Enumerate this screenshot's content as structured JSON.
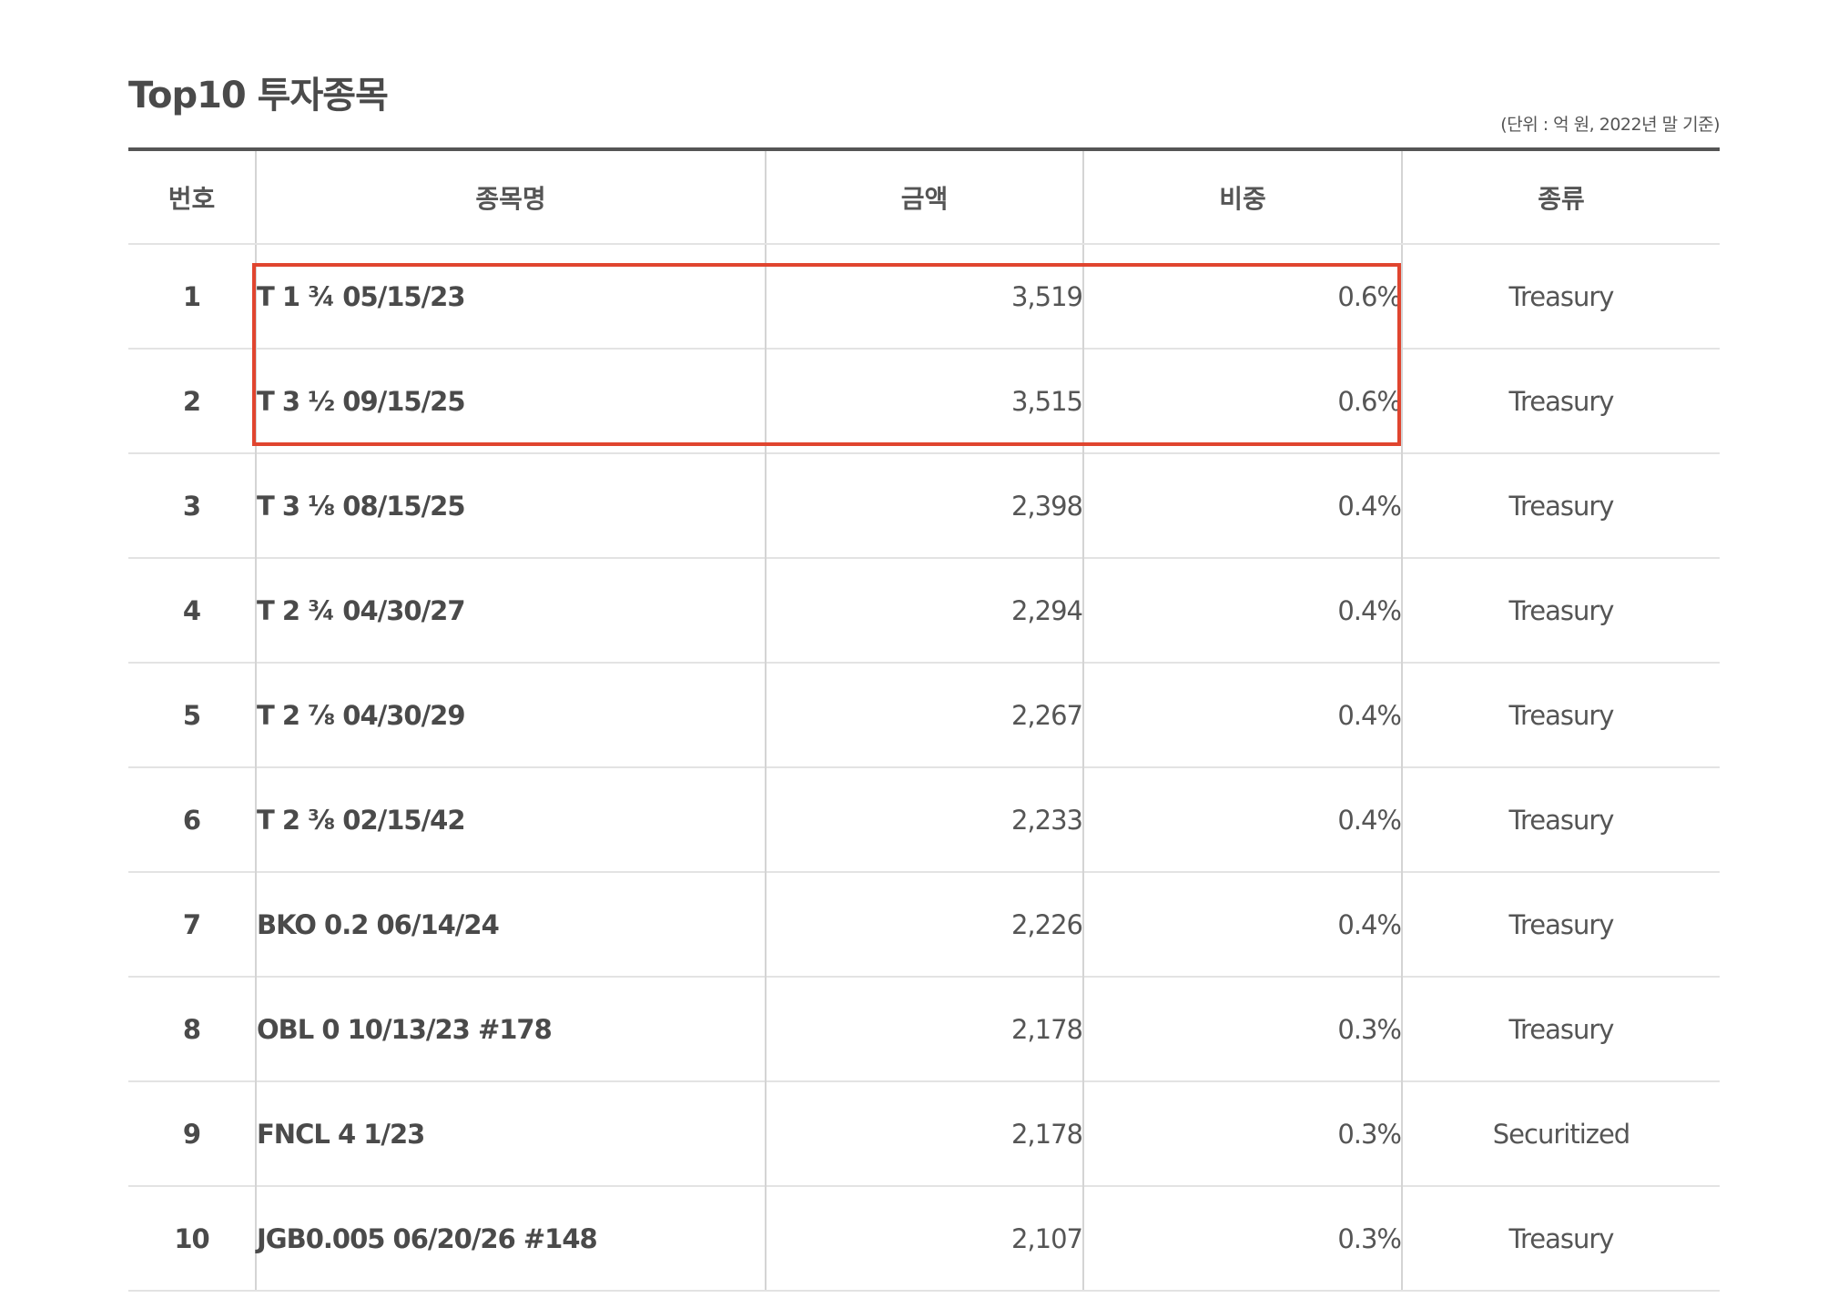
{
  "title": "Top10 투자종목",
  "unit_note": "(단위 : 억 원, 2022년 말 기준)",
  "headers": {
    "no": "번호",
    "name": "종목명",
    "amount": "금액",
    "weight": "비중",
    "type": "종류"
  },
  "rows": [
    {
      "no": "1",
      "name": "T 1 ¾ 05/15/23",
      "amount": "3,519",
      "weight": "0.6%",
      "type": "Treasury"
    },
    {
      "no": "2",
      "name": "T 3 ½ 09/15/25",
      "amount": "3,515",
      "weight": "0.6%",
      "type": "Treasury"
    },
    {
      "no": "3",
      "name": "T 3 ⅛ 08/15/25",
      "amount": "2,398",
      "weight": "0.4%",
      "type": "Treasury"
    },
    {
      "no": "4",
      "name": "T 2 ¾ 04/30/27",
      "amount": "2,294",
      "weight": "0.4%",
      "type": "Treasury"
    },
    {
      "no": "5",
      "name": "T 2 ⅞ 04/30/29",
      "amount": "2,267",
      "weight": "0.4%",
      "type": "Treasury"
    },
    {
      "no": "6",
      "name": "T 2 ⅜ 02/15/42",
      "amount": "2,233",
      "weight": "0.4%",
      "type": "Treasury"
    },
    {
      "no": "7",
      "name": "BKO 0.2 06/14/24",
      "amount": "2,226",
      "weight": "0.4%",
      "type": "Treasury"
    },
    {
      "no": "8",
      "name": "OBL 0 10/13/23 #178",
      "amount": "2,178",
      "weight": "0.3%",
      "type": "Treasury"
    },
    {
      "no": "9",
      "name": "FNCL 4 1/23",
      "amount": "2,178",
      "weight": "0.3%",
      "type": "Securitized"
    },
    {
      "no": "10",
      "name": "JGB0.005 06/20/26 #148",
      "amount": "2,107",
      "weight": "0.3%",
      "type": "Treasury"
    }
  ],
  "highlight": {
    "color": "#e0452f",
    "rows": [
      "1",
      "2"
    ]
  },
  "colors": {
    "text": "#4a4a4a",
    "rule": "#555555",
    "grid": "#e3e3e3"
  }
}
